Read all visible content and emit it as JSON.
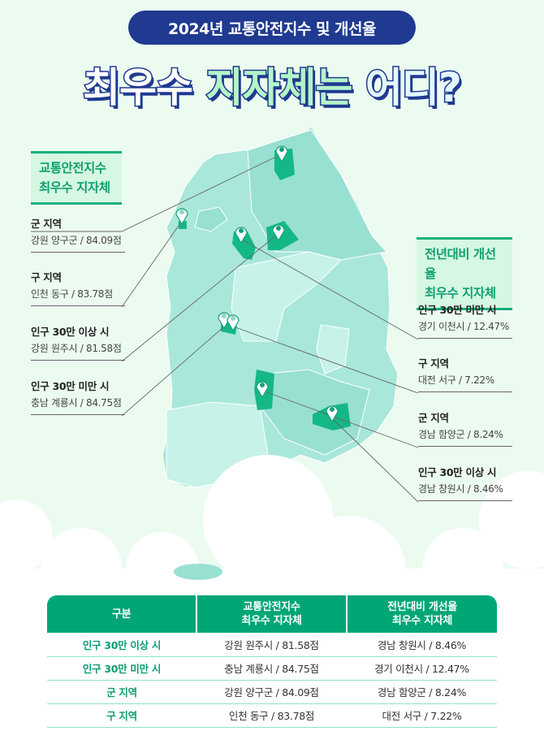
{
  "header": {
    "subtitle": "2024년 교통안전지수 및 개선율",
    "title_part1": "최우수",
    "title_part2": "지자체는",
    "title_part3": "어디?"
  },
  "left_box": {
    "line1": "교통안전지수",
    "line2": "최우수 지자체"
  },
  "right_box": {
    "line1": "전년대비 개선율",
    "line2": "최우수 지자체"
  },
  "left_items": [
    {
      "category": "군 지역",
      "value": "강원 양구군 / 84.09점"
    },
    {
      "category": "구 지역",
      "value": "인천 동구 / 83.78점"
    },
    {
      "category": "인구 30만 이상 시",
      "value": "강원 원주시 / 81.58점"
    },
    {
      "category": "인구 30만 미만 시",
      "value": "충남 계룡시 / 84.75점"
    }
  ],
  "right_items": [
    {
      "category": "인구 30만 미만 시",
      "value": "경기 이천시 / 12.47%"
    },
    {
      "category": "구 지역",
      "value": "대전 서구 / 7.22%"
    },
    {
      "category": "군 지역",
      "value": "경남 함양군 / 8.24%"
    },
    {
      "category": "인구 30만 이상 시",
      "value": "경남 창원시 / 8.46%"
    }
  ],
  "table": {
    "headers": [
      "구분",
      "교통안전지수\n최우수 지자체",
      "전년대비 개선율\n최우수 지자체"
    ],
    "header_lines": [
      [
        "구분"
      ],
      [
        "교통안전지수",
        "최우수 지자체"
      ],
      [
        "전년대비 개선율",
        "최우수 지자체"
      ]
    ],
    "rows": [
      [
        "인구 30만 이상 시",
        "강원 원주시 / 81.58점",
        "경남 창원시 / 8.46%"
      ],
      [
        "인구 30만 미만 시",
        "충남 계룡시 / 84.75점",
        "경기 이천시 / 12.47%"
      ],
      [
        "군 지역",
        "강원 양구군 / 84.09점",
        "경남 함양군 / 8.24%"
      ],
      [
        "구 지역",
        "인천 동구 / 83.78점",
        "대전 서구 / 7.22%"
      ]
    ]
  },
  "colors": {
    "navy": "#1f3a90",
    "green": "#00a676",
    "map_base": "#a8e6d9",
    "highlight": "#14b887"
  }
}
